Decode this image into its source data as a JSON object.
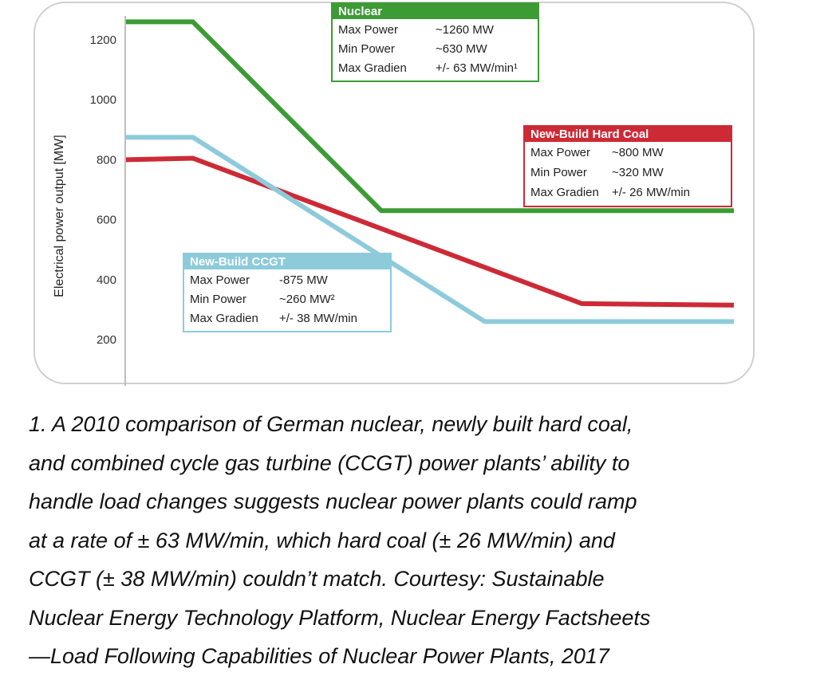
{
  "chart_data": {
    "type": "line",
    "ylabel": "Electrical power output [MW]",
    "xlabel": "",
    "yticks": [
      200,
      400,
      600,
      800,
      1000,
      1200
    ],
    "grid": false,
    "series": [
      {
        "name": "Nuclear",
        "color": "#3d9b35",
        "points": [
          [
            0,
            1260
          ],
          [
            0.11,
            1260
          ],
          [
            0.42,
            630
          ],
          [
            1.0,
            630
          ]
        ]
      },
      {
        "name": "New-Build Hard Coal",
        "color": "#cd2a36",
        "points": [
          [
            0,
            800
          ],
          [
            0.11,
            805
          ],
          [
            0.75,
            320
          ],
          [
            1.0,
            315
          ]
        ]
      },
      {
        "name": "New-Build CCGT",
        "color": "#8dcbdb",
        "points": [
          [
            0,
            875
          ],
          [
            0.11,
            875
          ],
          [
            0.59,
            260
          ],
          [
            1.0,
            260
          ]
        ]
      }
    ],
    "boxes": [
      {
        "key": "nuclear",
        "title": "Nuclear",
        "color": "#3d9b35",
        "rows": [
          {
            "label": "Max Power",
            "value": "~1260 MW"
          },
          {
            "label": "Min Power",
            "value": "~630 MW"
          },
          {
            "label": "Max Gradien",
            "value": "+/- 63 MW/min¹"
          }
        ]
      },
      {
        "key": "coal",
        "title": "New-Build Hard Coal",
        "color": "#cd2a36",
        "rows": [
          {
            "label": "Max Power",
            "value": "~800 MW"
          },
          {
            "label": "Min Power",
            "value": "~320 MW"
          },
          {
            "label": "Max Gradien",
            "value": "+/- 26 MW/min"
          }
        ]
      },
      {
        "key": "ccgt",
        "title": "New-Build CCGT",
        "color": "#8dcbdb",
        "rows": [
          {
            "label": "Max Power",
            "value": "-875 MW"
          },
          {
            "label": "Min Power",
            "value": "~260 MW²"
          },
          {
            "label": "Max Gradien",
            "value": "+/- 38 MW/min"
          }
        ]
      }
    ]
  },
  "caption": {
    "lines": [
      "1. A 2010 comparison of German nuclear, newly built hard coal,",
      "and combined cycle gas turbine (CCGT) power plants’ ability to",
      "handle load changes suggests nuclear power plants could ramp",
      "at a rate of ± 63 MW/min, which hard coal (± 26 MW/min) and",
      "CCGT (± 38 MW/min) couldn’t match. Courtesy: Sustainable",
      "Nuclear Energy Technology Platform, Nuclear Energy Factsheets",
      "—Load Following Capabilities of Nuclear Power Plants, 2017"
    ]
  }
}
